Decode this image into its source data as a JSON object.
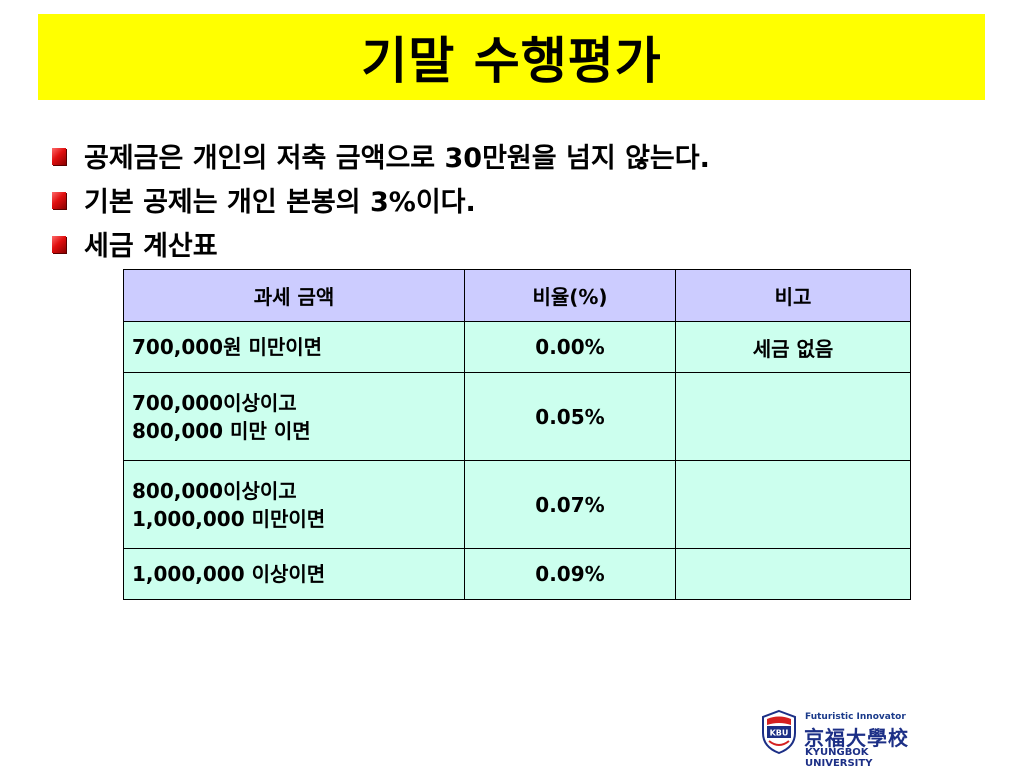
{
  "slide": {
    "title": "기말 수행평가",
    "bullets": [
      "공제금은 개인의 저축 금액으로 30만원을 넘지 않는다.",
      "기본 공제는 개인 본봉의 3%이다.",
      "세금 계산표"
    ],
    "colors": {
      "title_bg": "#ffff00",
      "header_bg": "#ccccff",
      "cell_bg": "#ccffee",
      "bullet": "#e01010"
    },
    "table": {
      "headers": [
        "과세 금액",
        "비율(%)",
        "비고"
      ],
      "rows": [
        {
          "amount_lines": [
            "700,000원 미만이면"
          ],
          "rate": "0.00%",
          "note": "세금 없음"
        },
        {
          "amount_lines": [
            "700,000이상이고",
            "800,000 미만 이면"
          ],
          "rate": "0.05%",
          "note": ""
        },
        {
          "amount_lines": [
            "800,000이상이고",
            "1,000,000 미만이면"
          ],
          "rate": "0.07%",
          "note": ""
        },
        {
          "amount_lines": [
            "1,000,000 이상이면"
          ],
          "rate": "0.09%",
          "note": ""
        }
      ]
    },
    "logo": {
      "tagline": "Futuristic Innovator",
      "emblem_text": "KBU",
      "name_cjk": "京福大學校",
      "name_en": "KYUNGBOK UNIVERSITY",
      "icon": "shield-emblem-icon"
    }
  }
}
